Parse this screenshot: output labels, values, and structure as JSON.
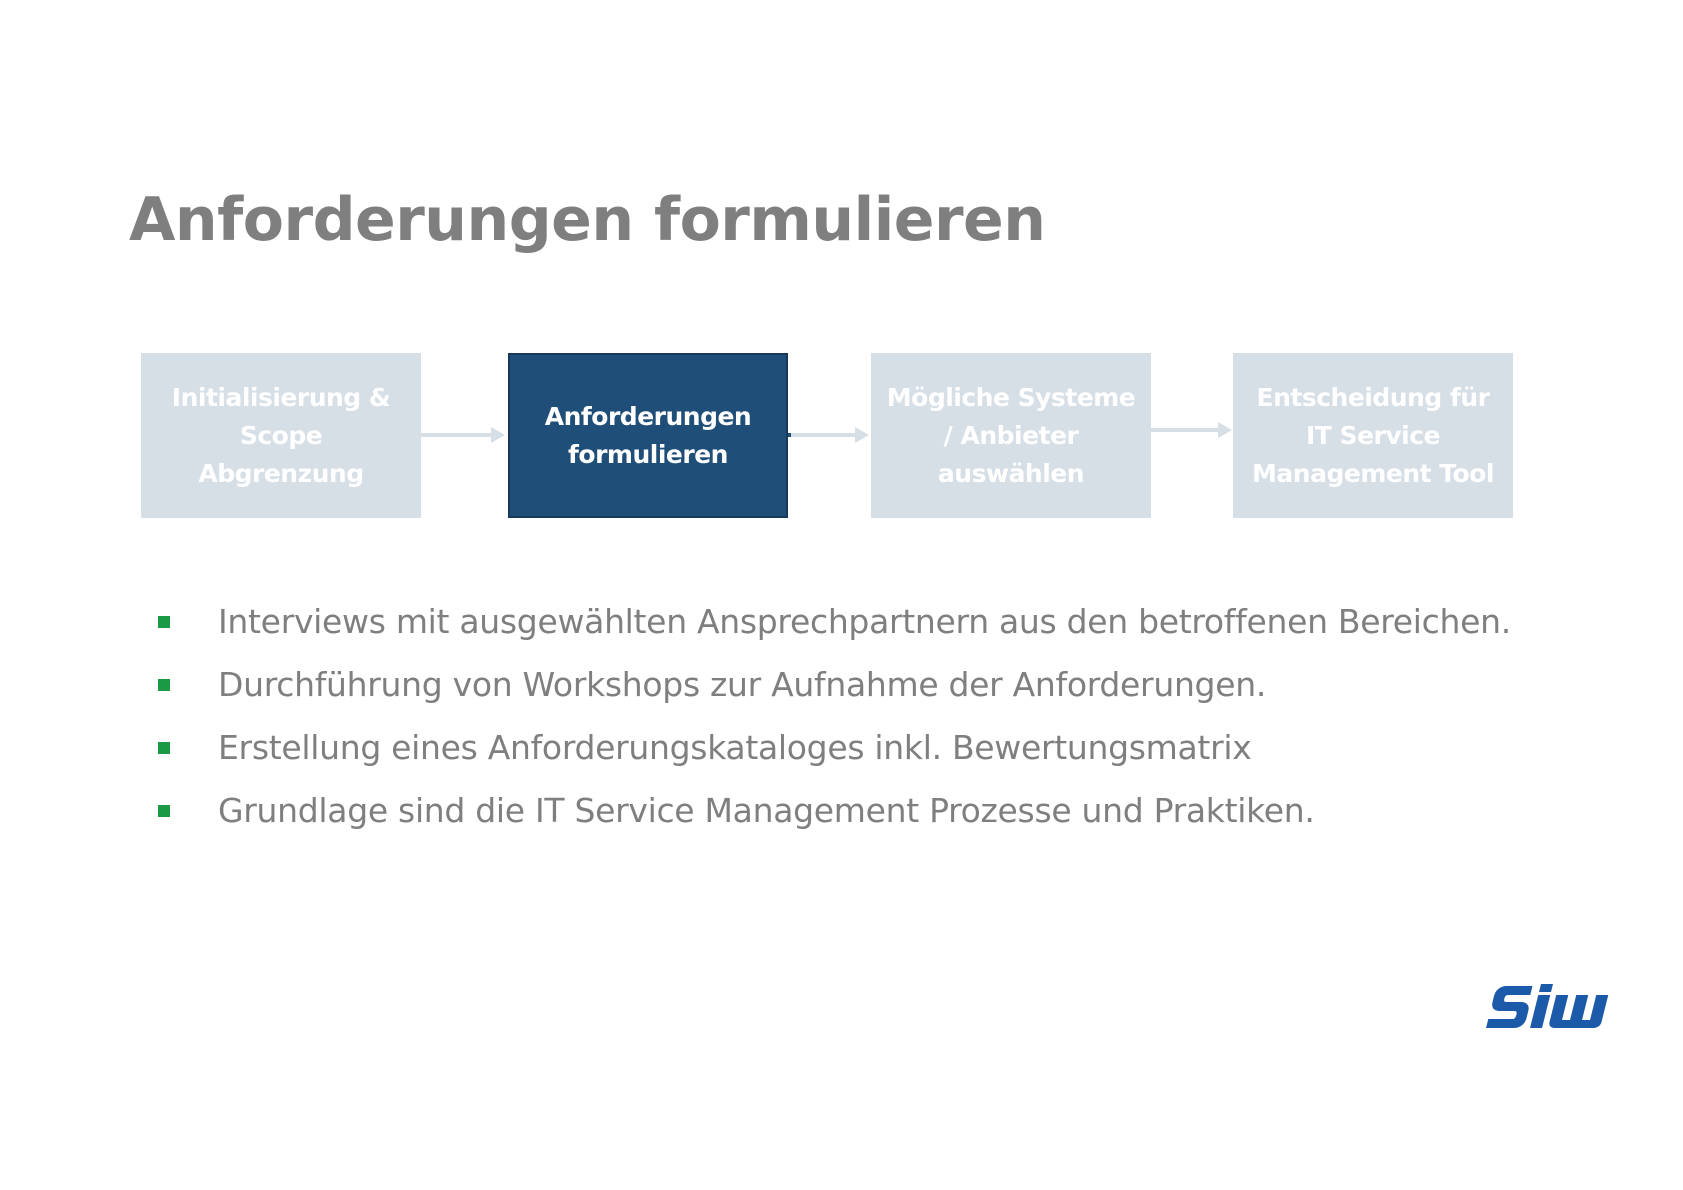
{
  "slide": {
    "title": "Anforderungen formulieren"
  },
  "process": {
    "steps": [
      {
        "lines": [
          "Initialisierung &",
          "Scope",
          "Abgrenzung"
        ],
        "active": false
      },
      {
        "lines": [
          "Anforderungen",
          "formulieren"
        ],
        "active": true
      },
      {
        "lines": [
          "Mögliche Systeme",
          "/ Anbieter",
          "auswählen"
        ],
        "active": false
      },
      {
        "lines": [
          "Entscheidung für",
          "IT Service",
          "Management Tool"
        ],
        "active": false
      }
    ]
  },
  "bullets": [
    "Interviews mit ausgewählten Ansprechpartnern aus den betroffenen Bereichen.",
    "Durchführung von Workshops zur Aufnahme der Anforderungen.",
    "Erstellung eines Anforderungskataloges inkl. Bewertungsmatrix",
    "Grundlage sind die IT Service Management Prozesse und Praktiken."
  ],
  "logo": {
    "text": "SIW",
    "color": "#1a5aa8"
  },
  "colors": {
    "title": "#7f7f7f",
    "active_step": "#1f4e79",
    "inactive_step": "#d6dee6",
    "bullet_marker": "#1a9a44"
  }
}
